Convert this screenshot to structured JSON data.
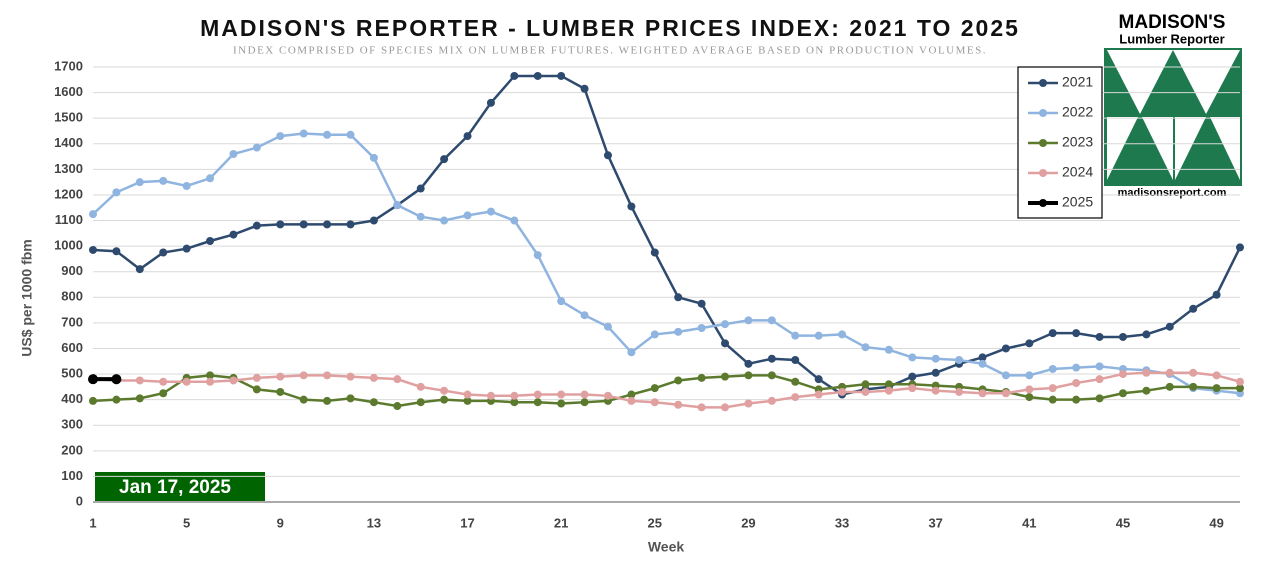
{
  "chart_data": {
    "type": "line",
    "title": "MADISON'S REPORTER - LUMBER PRICES INDEX: 2021 TO 2025",
    "subtitle": "INDEX COMPRISED OF SPECIES MIX ON LUMBER FUTURES. WEIGHTED AVERAGE BASED ON PRODUCTION VOLUMES.",
    "x_label": "Week",
    "y_label": "US$ per 1000 fbm",
    "annotation": "Jan 17, 2025",
    "logo": {
      "name": "MADISON'S",
      "subname": "Lumber Reporter",
      "url": "madisonsreport.com"
    },
    "x": [
      1,
      2,
      3,
      4,
      5,
      6,
      7,
      8,
      9,
      10,
      11,
      12,
      13,
      14,
      15,
      16,
      17,
      18,
      19,
      20,
      21,
      22,
      23,
      24,
      25,
      26,
      27,
      28,
      29,
      30,
      31,
      32,
      33,
      34,
      35,
      36,
      37,
      38,
      39,
      40,
      41,
      42,
      43,
      44,
      45,
      46,
      47,
      48,
      49,
      50
    ],
    "xlim": [
      1,
      50
    ],
    "xticks": [
      1,
      5,
      9,
      13,
      17,
      21,
      25,
      29,
      33,
      37,
      41,
      45,
      49
    ],
    "ylim": [
      0,
      1700
    ],
    "yticks": [
      0,
      100,
      200,
      300,
      400,
      500,
      600,
      700,
      800,
      900,
      1000,
      1100,
      1200,
      1300,
      1400,
      1500,
      1600,
      1700
    ],
    "grid": true,
    "legend": "upper right",
    "series": [
      {
        "name": "2021",
        "color": "#2e4a6e",
        "values": [
          985,
          980,
          910,
          975,
          990,
          1020,
          1045,
          1080,
          1085,
          1085,
          1085,
          1085,
          1100,
          1160,
          1225,
          1340,
          1430,
          1560,
          1665,
          1665,
          1665,
          1615,
          1355,
          1155,
          975,
          800,
          775,
          620,
          540,
          560,
          555,
          480,
          420,
          440,
          450,
          490,
          505,
          540,
          565,
          600,
          620,
          660,
          660,
          645,
          645,
          655,
          685,
          755,
          810,
          995
        ]
      },
      {
        "name": "2022",
        "color": "#8fb4e0",
        "values": [
          1125,
          1210,
          1250,
          1255,
          1235,
          1265,
          1360,
          1385,
          1430,
          1440,
          1435,
          1435,
          1345,
          1160,
          1115,
          1100,
          1120,
          1135,
          1100,
          965,
          785,
          730,
          685,
          585,
          655,
          665,
          680,
          695,
          710,
          710,
          650,
          650,
          655,
          605,
          595,
          565,
          560,
          555,
          540,
          495,
          495,
          520,
          525,
          530,
          520,
          515,
          500,
          445,
          435,
          425
        ]
      },
      {
        "name": "2023",
        "color": "#5c7a2e",
        "values": [
          395,
          400,
          405,
          425,
          485,
          495,
          485,
          440,
          430,
          400,
          395,
          405,
          390,
          375,
          390,
          400,
          395,
          395,
          390,
          390,
          385,
          390,
          395,
          420,
          445,
          475,
          485,
          490,
          495,
          495,
          470,
          440,
          450,
          460,
          460,
          460,
          455,
          450,
          440,
          430,
          410,
          400,
          400,
          405,
          425,
          435,
          450,
          450,
          445,
          445
        ]
      },
      {
        "name": "2024",
        "color": "#e0a0a0",
        "values": [
          480,
          475,
          475,
          470,
          470,
          470,
          475,
          485,
          490,
          495,
          495,
          490,
          485,
          480,
          450,
          435,
          420,
          415,
          415,
          420,
          420,
          420,
          415,
          395,
          390,
          380,
          370,
          370,
          385,
          395,
          410,
          420,
          430,
          430,
          435,
          445,
          435,
          430,
          425,
          425,
          440,
          445,
          465,
          480,
          500,
          505,
          505,
          505,
          495,
          470
        ]
      },
      {
        "name": "2025",
        "color": "#000000",
        "values": [
          480,
          480,
          null,
          null,
          null,
          null,
          null,
          null,
          null,
          null,
          null,
          null,
          null,
          null,
          null,
          null,
          null,
          null,
          null,
          null,
          null,
          null,
          null,
          null,
          null,
          null,
          null,
          null,
          null,
          null,
          null,
          null,
          null,
          null,
          null,
          null,
          null,
          null,
          null,
          null,
          null,
          null,
          null,
          null,
          null,
          null,
          null,
          null,
          null,
          null
        ]
      }
    ]
  }
}
